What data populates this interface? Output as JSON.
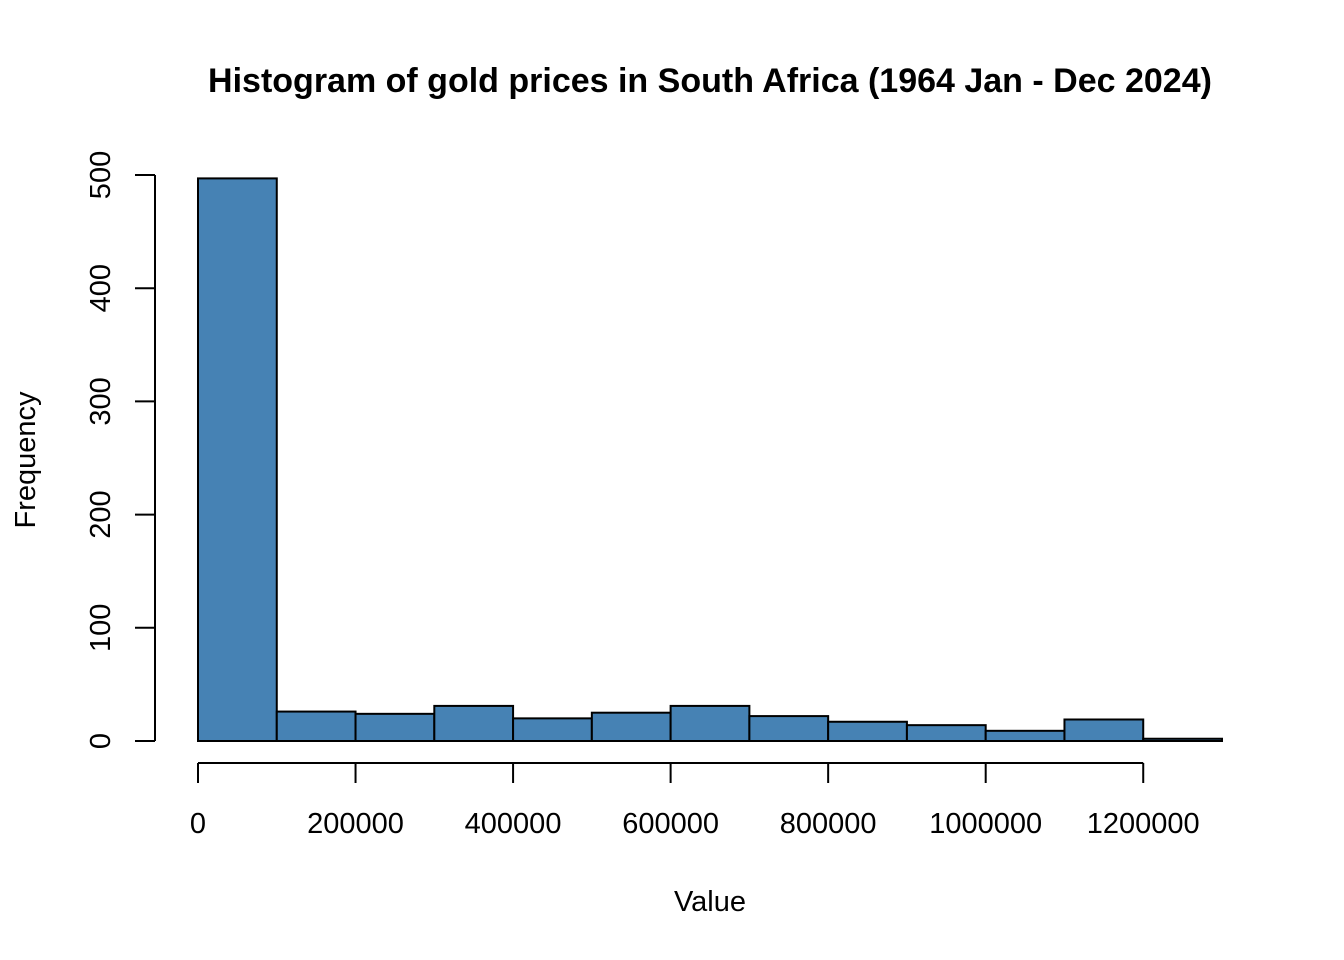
{
  "chart_data": {
    "type": "bar",
    "title": "Histogram of gold prices in South Africa (1964 Jan - Dec 2024)",
    "xlabel": "Value",
    "ylabel": "Frequency",
    "bins": [
      [
        0,
        100000
      ],
      [
        100000,
        200000
      ],
      [
        200000,
        300000
      ],
      [
        300000,
        400000
      ],
      [
        400000,
        500000
      ],
      [
        500000,
        600000
      ],
      [
        600000,
        700000
      ],
      [
        700000,
        800000
      ],
      [
        800000,
        900000
      ],
      [
        900000,
        1000000
      ],
      [
        1000000,
        1100000
      ],
      [
        1100000,
        1200000
      ],
      [
        1200000,
        1300000
      ]
    ],
    "values": [
      497,
      26,
      24,
      31,
      20,
      25,
      31,
      22,
      17,
      14,
      9,
      19,
      2
    ],
    "xlim": [
      0,
      1300000
    ],
    "ylim": [
      0,
      500
    ],
    "x_ticks": [
      0,
      200000,
      400000,
      600000,
      800000,
      1000000,
      1200000
    ],
    "x_tick_labels": [
      "0",
      "200000",
      "400000",
      "600000",
      "800000",
      "1000000",
      "1200000"
    ],
    "y_ticks": [
      0,
      100,
      200,
      300,
      400,
      500
    ],
    "y_tick_labels": [
      "0",
      "100",
      "200",
      "300",
      "400",
      "500"
    ],
    "bar_color": "#4682B4",
    "edge_color": "#000000",
    "grid": false
  }
}
